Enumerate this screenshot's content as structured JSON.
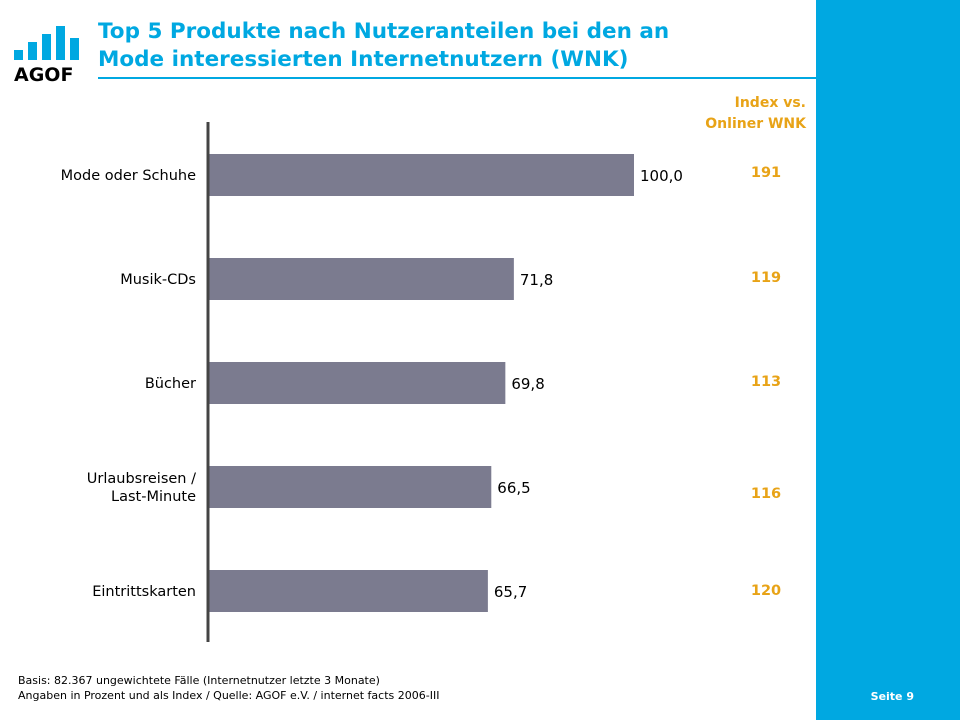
{
  "title": "Top 5 Produkte nach Nutzeranteilen bei den an\nMode interessierten Internetnutzern (WNK)",
  "logo_text": "AGOF",
  "index_header": "Index vs.\nOnliner WNK",
  "chart_data": {
    "type": "bar",
    "orientation": "horizontal",
    "categories": [
      "Mode oder Schuhe",
      "Musik-CDs",
      "Bücher",
      "Urlaubsreisen /\nLast-Minute",
      "Eintrittskarten"
    ],
    "values": [
      100.0,
      71.8,
      69.8,
      66.5,
      65.7
    ],
    "value_labels": [
      "100,0",
      "71,8",
      "69,8",
      "66,5",
      "65,7"
    ],
    "index_values": [
      "191",
      "119",
      "113",
      "116",
      "120"
    ],
    "xlim": [
      0,
      100
    ],
    "bar_color": "#7b7b8f",
    "index_color": "#e8a317"
  },
  "footnote_line1": "Basis: 82.367 ungewichtete Fälle (Internetnutzer letzte 3 Monate)",
  "footnote_line2": "Angaben in Prozent und als Index / Quelle: AGOF e.V. / internet facts 2006-III",
  "page_label": "Seite 9",
  "colors": {
    "accent": "#00a8e1",
    "index": "#e8a317",
    "bar": "#7b7b8f"
  }
}
